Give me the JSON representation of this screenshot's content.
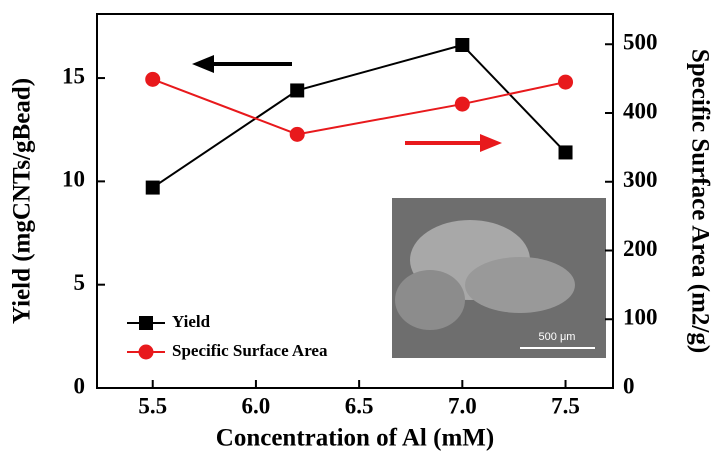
{
  "chart_data": {
    "type": "line",
    "x_label": "Concentration of Al (mM)",
    "y_label": "Yield (mgCNTs/gBead)",
    "y2_label": "Specific Surface Area (m2/g)",
    "x": [
      5.5,
      6.2,
      7.0,
      7.5
    ],
    "series": [
      {
        "name": "Yield",
        "color": "#000000",
        "marker": "square",
        "values": [
          9.7,
          14.4,
          16.6,
          11.4
        ]
      },
      {
        "name": "Specific Surface Area",
        "color": "#e8191c",
        "marker": "circle",
        "axis": "y2",
        "values": [
          449,
          369,
          413,
          445
        ]
      }
    ],
    "xlim": [
      5.23,
      7.73
    ],
    "xticks": [
      {
        "value": 5.5,
        "label": "5.5"
      },
      {
        "value": 6.0,
        "label": "6.0"
      },
      {
        "value": 6.5,
        "label": "6.5"
      },
      {
        "value": 7.0,
        "label": "7.0"
      },
      {
        "value": 7.5,
        "label": "7.5"
      }
    ],
    "ylim": [
      0,
      18.1
    ],
    "yticks": [
      0,
      5,
      10,
      15
    ],
    "y2lim": [
      0,
      544
    ],
    "y2ticks": [
      0,
      100,
      200,
      300,
      400,
      500
    ],
    "legend": "lower left",
    "inset_scale_label": "500 μm"
  }
}
